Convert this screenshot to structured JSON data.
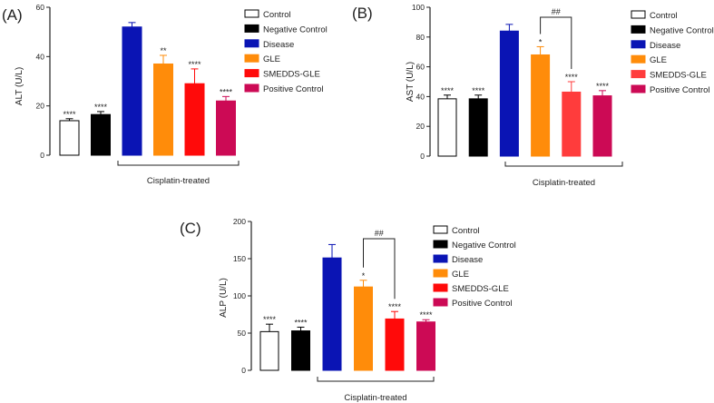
{
  "chart_data": [
    {
      "type": "bar",
      "panel_label": "(A)",
      "ylabel": "ALT (U/L)",
      "ylim": [
        0,
        60
      ],
      "yticks": [
        0,
        20,
        40,
        60
      ],
      "categories": [
        "Control",
        "Negative Control",
        "Disease",
        "GLE",
        "SMEDDS-GLE",
        "Positive Control"
      ],
      "values": [
        14,
        16.5,
        52,
        37,
        29,
        22
      ],
      "errors": [
        0.8,
        1.2,
        1.8,
        3.5,
        6,
        1.8
      ],
      "significance": [
        "****",
        "****",
        "",
        "**",
        "****",
        "****"
      ],
      "group_label": "Cisplatin-treated",
      "comparison": null
    },
    {
      "type": "bar",
      "panel_label": "(B)",
      "ylabel": "AST (U/L)",
      "ylim": [
        0,
        100
      ],
      "yticks": [
        0,
        20,
        40,
        60,
        80,
        100
      ],
      "categories": [
        "Control",
        "Negative Control",
        "Disease",
        "GLE",
        "SMEDDS-GLE",
        "Positive Control"
      ],
      "values": [
        38.5,
        38.5,
        84,
        68,
        43,
        40.5
      ],
      "errors": [
        2.5,
        2.5,
        4.5,
        5.5,
        7,
        3.5
      ],
      "significance": [
        "****",
        "****",
        "",
        "*",
        "****",
        "****"
      ],
      "group_label": "Cisplatin-treated",
      "comparison": {
        "from": 3,
        "to": 4,
        "label": "##"
      }
    },
    {
      "type": "bar",
      "panel_label": "(C)",
      "ylabel": "ALP (U/L)",
      "ylim": [
        0,
        200
      ],
      "yticks": [
        0,
        50,
        100,
        150,
        200
      ],
      "categories": [
        "Control",
        "Negative Control",
        "Disease",
        "GLE",
        "SMEDDS-GLE",
        "Positive Control"
      ],
      "values": [
        52,
        53,
        151,
        112,
        69,
        65
      ],
      "errors": [
        10,
        5,
        18,
        9,
        10,
        3
      ],
      "significance": [
        "****",
        "****",
        "",
        "*",
        "****",
        "****"
      ],
      "group_label": "Cisplatin-treated",
      "comparison": {
        "from": 3,
        "to": 4,
        "label": "##"
      }
    }
  ],
  "colors": {
    "A": [
      "#ffffff",
      "#000000",
      "#0a14b4",
      "#ff8c0a",
      "#ff0a0a",
      "#cc0a55"
    ],
    "B": [
      "#ffffff",
      "#000000",
      "#0a14b4",
      "#ff8c0a",
      "#ff3c3c",
      "#cc0a55"
    ],
    "C": [
      "#ffffff",
      "#000000",
      "#0a14b4",
      "#ff8c0a",
      "#ff0a0a",
      "#cc0a55"
    ]
  },
  "legend_labels": [
    "Control",
    "Negative Control",
    "Disease",
    "GLE",
    "SMEDDS-GLE",
    "Positive Control"
  ]
}
